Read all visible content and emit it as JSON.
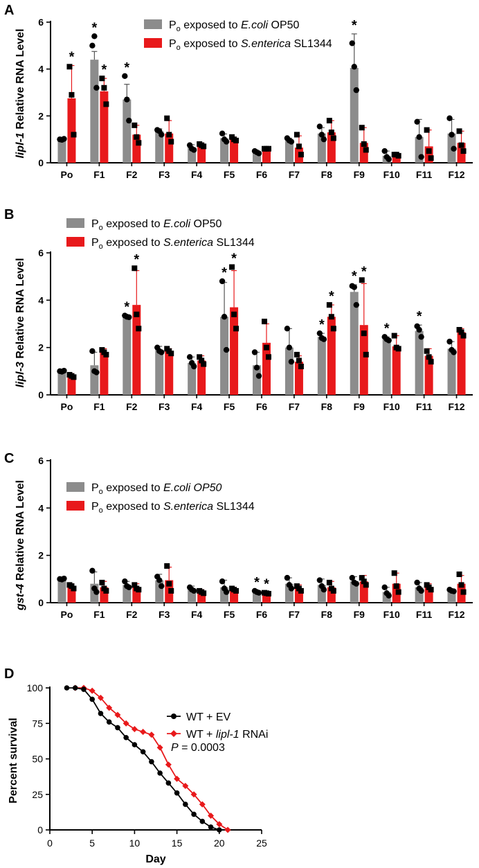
{
  "panels": [
    {
      "label": "A",
      "type": "bar",
      "ylabel_gene": "lipl-1",
      "ylabel_rest": " Relative RNA Level",
      "ylim": [
        0,
        6
      ],
      "yticks": [
        "0",
        "2",
        "4",
        "6"
      ],
      "categories": [
        "Po",
        "F1",
        "F2",
        "F3",
        "F4",
        "F5",
        "F6",
        "F7",
        "F8",
        "F9",
        "F10",
        "F11",
        "F12"
      ],
      "legend": {
        "items": [
          {
            "pre": "P",
            "sub": "o",
            "mid": " exposed to ",
            "italic": "E.coli",
            "post": " OP50"
          },
          {
            "pre": "P",
            "sub": "o",
            "mid": " exposed to ",
            "italic": "S.enterica",
            "post": " SL1344"
          }
        ]
      },
      "series": [
        {
          "name": "Po exposed to E.coli OP50",
          "color": "#8c8c8c",
          "values": [
            1.0,
            4.4,
            2.7,
            1.35,
            0.65,
            1.05,
            0.45,
            0.95,
            1.25,
            4.05,
            0.3,
            1.1,
            1.25
          ],
          "errors": [
            0.02,
            0.35,
            0.65,
            0.1,
            0.12,
            0.18,
            0.05,
            0.1,
            0.25,
            1.45,
            0.2,
            0.75,
            0.6
          ],
          "points": [
            [
              1.0,
              0.98,
              1.02
            ],
            [
              5.0,
              5.4,
              3.2
            ],
            [
              3.7,
              2.7,
              1.8
            ],
            [
              1.4,
              1.35,
              1.2
            ],
            [
              0.75,
              0.6,
              0.55
            ],
            [
              1.25,
              1.0,
              0.9
            ],
            [
              0.5,
              0.45,
              0.4
            ],
            [
              1.05,
              0.95,
              0.9
            ],
            [
              1.55,
              1.2,
              1.0
            ],
            [
              5.1,
              4.1,
              3.1
            ],
            [
              0.5,
              0.25,
              0.15
            ],
            [
              1.75,
              1.1,
              0.25
            ],
            [
              1.9,
              1.2,
              0.6
            ]
          ],
          "stars": [
            false,
            true,
            true,
            false,
            false,
            false,
            false,
            false,
            false,
            true,
            false,
            false,
            false
          ]
        },
        {
          "name": "Po exposed to S.enterica SL1344",
          "color": "#e8191b",
          "values": [
            2.75,
            3.05,
            1.2,
            1.25,
            0.75,
            1.0,
            0.6,
            0.65,
            1.3,
            0.85,
            0.35,
            0.7,
            0.85
          ],
          "errors": [
            1.4,
            0.55,
            0.4,
            0.55,
            0.1,
            0.1,
            0.05,
            0.5,
            0.5,
            0.65,
            0.05,
            0.7,
            0.5
          ],
          "points": [
            [
              4.1,
              2.9,
              1.2
            ],
            [
              3.6,
              3.2,
              2.5
            ],
            [
              1.6,
              1.1,
              0.85
            ],
            [
              1.9,
              1.2,
              0.9
            ],
            [
              0.8,
              0.75,
              0.7
            ],
            [
              1.1,
              1.0,
              0.95
            ],
            [
              0.6,
              0.6,
              0.6
            ],
            [
              1.2,
              0.7,
              0.35
            ],
            [
              1.8,
              1.3,
              1.05
            ],
            [
              1.5,
              0.8,
              0.55
            ],
            [
              0.35,
              0.35,
              0.3
            ],
            [
              1.4,
              0.5,
              0.2
            ],
            [
              1.35,
              0.75,
              0.5
            ]
          ],
          "stars": [
            true,
            true,
            false,
            false,
            false,
            false,
            false,
            false,
            false,
            false,
            false,
            false,
            false
          ]
        }
      ]
    },
    {
      "label": "B",
      "type": "bar",
      "ylabel_gene": "lipl-3",
      "ylabel_rest": " Relative RNA Level",
      "ylim": [
        0,
        6
      ],
      "yticks": [
        "0",
        "2",
        "4",
        "6"
      ],
      "categories": [
        "Po",
        "F1",
        "F2",
        "F3",
        "F4",
        "F5",
        "F6",
        "F7",
        "F8",
        "F9",
        "F10",
        "F11",
        "F12"
      ],
      "legend": {
        "items": [
          {
            "pre": "P",
            "sub": "o",
            "mid": " exposed to ",
            "italic": "E.coli",
            "post": " OP50"
          },
          {
            "pre": "P",
            "sub": "o",
            "mid": " exposed to ",
            "italic": "S.enterica",
            "post": " SL1344"
          }
        ]
      },
      "series": [
        {
          "name": "Po exposed to E.coli OP50",
          "color": "#8c8c8c",
          "values": [
            1.0,
            1.25,
            3.3,
            1.9,
            1.35,
            3.3,
            1.25,
            2.0,
            2.45,
            4.35,
            2.35,
            2.7,
            1.95
          ],
          "errors": [
            0.03,
            0.55,
            0.05,
            0.15,
            0.25,
            1.45,
            0.55,
            0.8,
            0.15,
            0.3,
            0.1,
            0.25,
            0.3
          ],
          "points": [
            [
              1.0,
              0.98,
              1.02
            ],
            [
              1.85,
              1.0,
              0.95
            ],
            [
              3.35,
              3.3,
              3.28
            ],
            [
              2.0,
              1.85,
              1.8
            ],
            [
              1.6,
              1.35,
              1.2
            ],
            [
              4.8,
              3.3,
              1.9
            ],
            [
              1.8,
              1.15,
              0.8
            ],
            [
              2.8,
              2.0,
              1.4
            ],
            [
              2.6,
              2.4,
              2.35
            ],
            [
              4.6,
              4.55,
              3.8
            ],
            [
              2.45,
              2.35,
              2.3
            ],
            [
              2.9,
              2.75,
              2.45
            ],
            [
              2.25,
              1.9,
              1.8
            ]
          ],
          "stars": [
            false,
            false,
            true,
            false,
            false,
            true,
            false,
            false,
            true,
            true,
            true,
            true,
            false
          ]
        },
        {
          "name": "Po exposed to S.enterica SL1344",
          "color": "#e8191b",
          "values": [
            0.8,
            1.8,
            3.8,
            1.85,
            1.45,
            3.7,
            2.2,
            1.4,
            3.3,
            2.95,
            2.05,
            1.65,
            2.65
          ],
          "errors": [
            0.1,
            0.15,
            1.45,
            0.1,
            0.2,
            1.55,
            0.8,
            0.25,
            0.5,
            1.75,
            0.45,
            0.3,
            0.15
          ],
          "points": [
            [
              0.85,
              0.8,
              0.75
            ],
            [
              1.9,
              1.8,
              1.7
            ],
            [
              5.35,
              3.4,
              2.8
            ],
            [
              1.95,
              1.85,
              1.75
            ],
            [
              1.6,
              1.45,
              1.3
            ],
            [
              5.4,
              3.4,
              2.8
            ],
            [
              3.1,
              2.0,
              1.6
            ],
            [
              1.7,
              1.45,
              1.2
            ],
            [
              3.8,
              3.3,
              2.8
            ],
            [
              4.85,
              2.6,
              1.7
            ],
            [
              2.5,
              2.0,
              1.95
            ],
            [
              1.85,
              1.6,
              1.4
            ],
            [
              2.75,
              2.65,
              2.5
            ]
          ],
          "stars": [
            false,
            false,
            true,
            false,
            false,
            true,
            false,
            false,
            true,
            true,
            false,
            false,
            false
          ]
        }
      ]
    },
    {
      "label": "C",
      "type": "bar",
      "ylabel_gene": "gst-4",
      "ylabel_rest": " Relative RNA Level",
      "ylim": [
        0,
        6
      ],
      "yticks": [
        "0",
        "2",
        "4",
        "6"
      ],
      "categories": [
        "Po",
        "F1",
        "F2",
        "F3",
        "F4",
        "F5",
        "F6",
        "F7",
        "F8",
        "F9",
        "F10",
        "F11",
        "F12"
      ],
      "legend": {
        "items": [
          {
            "pre": "P",
            "sub": "o",
            "mid": " exposed to ",
            "italic": "E.coli OP50",
            "post": ""
          },
          {
            "pre": "P",
            "sub": "o",
            "mid": " exposed to ",
            "italic": "S.enterica",
            "post": " SL1344"
          }
        ]
      },
      "series": [
        {
          "name": "Po exposed to E.coli OP50",
          "color": "#8c8c8c",
          "values": [
            1.0,
            0.8,
            0.75,
            0.95,
            0.6,
            0.65,
            0.45,
            0.8,
            0.75,
            0.9,
            0.45,
            0.65,
            0.5
          ],
          "errors": [
            0.03,
            0.5,
            0.15,
            0.25,
            0.1,
            0.3,
            0.05,
            0.25,
            0.25,
            0.2,
            0.2,
            0.2,
            0.05
          ],
          "points": [
            [
              1.0,
              0.98,
              1.02
            ],
            [
              1.35,
              0.6,
              0.45
            ],
            [
              0.9,
              0.7,
              0.65
            ],
            [
              1.1,
              0.95,
              0.7
            ],
            [
              0.65,
              0.55,
              0.5
            ],
            [
              0.9,
              0.6,
              0.45
            ],
            [
              0.5,
              0.45,
              0.42
            ],
            [
              1.05,
              0.75,
              0.6
            ],
            [
              0.95,
              0.7,
              0.55
            ],
            [
              1.05,
              0.85,
              0.8
            ],
            [
              0.65,
              0.4,
              0.3
            ],
            [
              0.85,
              0.6,
              0.5
            ],
            [
              0.55,
              0.5,
              0.48
            ]
          ],
          "stars": [
            false,
            false,
            false,
            false,
            false,
            false,
            true,
            false,
            false,
            false,
            false,
            false,
            false
          ]
        },
        {
          "name": "Po exposed to S.enterica SL1344",
          "color": "#e8191b",
          "values": [
            0.7,
            0.65,
            0.65,
            0.95,
            0.45,
            0.55,
            0.4,
            0.6,
            0.65,
            0.9,
            0.8,
            0.65,
            0.8
          ],
          "errors": [
            0.1,
            0.25,
            0.15,
            0.55,
            0.1,
            0.1,
            0.03,
            0.15,
            0.25,
            0.25,
            0.45,
            0.15,
            0.35
          ],
          "points": [
            [
              0.75,
              0.7,
              0.6
            ],
            [
              0.85,
              0.6,
              0.5
            ],
            [
              0.75,
              0.6,
              0.55
            ],
            [
              1.55,
              0.8,
              0.5
            ],
            [
              0.5,
              0.45,
              0.4
            ],
            [
              0.6,
              0.55,
              0.5
            ],
            [
              0.42,
              0.4,
              0.38
            ],
            [
              0.7,
              0.6,
              0.5
            ],
            [
              0.85,
              0.6,
              0.5
            ],
            [
              1.05,
              0.9,
              0.75
            ],
            [
              1.25,
              0.7,
              0.45
            ],
            [
              0.75,
              0.65,
              0.55
            ],
            [
              1.2,
              0.75,
              0.45
            ]
          ],
          "stars": [
            false,
            false,
            false,
            false,
            false,
            false,
            true,
            false,
            false,
            false,
            false,
            false,
            false
          ]
        }
      ]
    },
    {
      "label": "D",
      "type": "line",
      "xlabel": "Day",
      "ylabel": "Percent survival",
      "xlim": [
        0,
        25
      ],
      "ylim": [
        0,
        100
      ],
      "xticks": [
        "0",
        "5",
        "10",
        "15",
        "20",
        "25"
      ],
      "yticks": [
        "0",
        "25",
        "50",
        "75",
        "100"
      ],
      "pvalue_label": "P",
      "pvalue_text": " = 0.0003",
      "series": [
        {
          "name_pre": "WT + EV",
          "name_italic": "",
          "name_post": "",
          "color": "#000000",
          "marker": "circle",
          "x": [
            2,
            3,
            4,
            5,
            6,
            7,
            8,
            9,
            10,
            11,
            12,
            13,
            14,
            15,
            16,
            17,
            18,
            19,
            20
          ],
          "y": [
            100,
            100,
            99,
            92,
            82,
            76,
            72,
            65,
            60,
            55,
            48,
            40,
            33,
            26,
            18,
            11,
            6,
            2,
            0
          ]
        },
        {
          "name_pre": "WT + ",
          "name_italic": "lipl-1",
          "name_post": " RNAi",
          "color": "#e8191b",
          "marker": "diamond",
          "x": [
            3,
            4,
            5,
            6,
            7,
            8,
            9,
            10,
            11,
            12,
            13,
            14,
            15,
            16,
            17,
            18,
            19,
            20,
            21
          ],
          "y": [
            100,
            100,
            98,
            93,
            86,
            81,
            75,
            71,
            69,
            67,
            58,
            46,
            36,
            31,
            25,
            18,
            10,
            4,
            0
          ]
        }
      ]
    }
  ]
}
